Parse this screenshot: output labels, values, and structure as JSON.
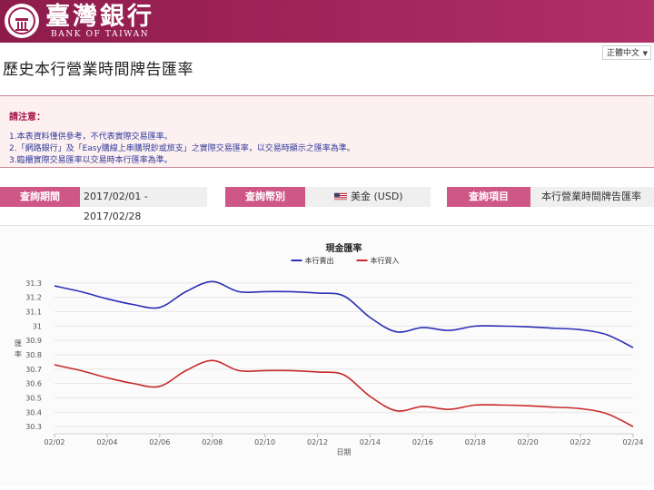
{
  "header": {
    "logo_cn": "臺灣銀行",
    "logo_en": "BANK OF TAIWAN",
    "language": "正體中文"
  },
  "page_title": "歷史本行營業時間牌告匯率",
  "notice": {
    "title": "請注意：",
    "lines": [
      "1.本表資料僅供參考，不代表實際交易匯率。",
      "2.「網路銀行」及「Easy購線上串購現鈔或旅支」之實際交易匯率，以交易時顯示之匯率為準。",
      "3.臨櫃實際交易匯率以交易時本行匯率為準。"
    ]
  },
  "query": {
    "period_label": "查詢期間",
    "period_value": "2017/02/01 - 2017/02/28",
    "currency_label": "查詢幣別",
    "currency_value": "美金 (USD)",
    "item_label": "查詢項目",
    "item_value": "本行營業時間牌告匯率"
  },
  "colors": {
    "brand": "#a0235a",
    "button": "#cf5788",
    "sell": "#2b2fb5",
    "buy": "#c62b2b"
  },
  "chart_data": {
    "type": "line",
    "title": "現金匯率",
    "xlabel": "日期",
    "ylabel": "匯率",
    "ylim": [
      30.25,
      31.35
    ],
    "yticks": [
      30.3,
      30.4,
      30.5,
      30.6,
      30.7,
      30.8,
      30.9,
      31,
      31.1,
      31.2,
      31.3
    ],
    "ytick_labels": [
      "30.3",
      "30.4",
      "30.5",
      "30.6",
      "30.7",
      "30.8",
      "30.9",
      "31",
      "31.1",
      "31.2",
      "31.3"
    ],
    "xlim": [
      2,
      24
    ],
    "xticks": [
      2,
      4,
      6,
      8,
      10,
      12,
      14,
      16,
      18,
      20,
      22,
      24
    ],
    "xtick_labels": [
      "02/02",
      "02/04",
      "02/06",
      "02/08",
      "02/10",
      "02/12",
      "02/14",
      "02/16",
      "02/18",
      "02/20",
      "02/22",
      "02/24"
    ],
    "legend_position": "top-center",
    "grid": true,
    "series": [
      {
        "name": "本行賣出",
        "color": "#2b2fb5",
        "x": [
          2,
          3,
          4,
          5,
          6,
          7,
          8,
          9,
          10,
          11,
          12,
          13,
          14,
          15,
          16,
          17,
          18,
          19,
          20,
          21,
          22,
          23,
          24
        ],
        "values": [
          31.28,
          31.24,
          31.19,
          31.15,
          31.13,
          31.24,
          31.31,
          31.24,
          31.24,
          31.24,
          31.23,
          31.21,
          31.06,
          30.96,
          30.99,
          30.97,
          31.0,
          31.0,
          30.995,
          30.985,
          30.975,
          30.94,
          30.85
        ]
      },
      {
        "name": "本行買入",
        "color": "#c62b2b",
        "x": [
          2,
          3,
          4,
          5,
          6,
          7,
          8,
          9,
          10,
          11,
          12,
          13,
          14,
          15,
          16,
          17,
          18,
          19,
          20,
          21,
          22,
          23,
          24
        ],
        "values": [
          30.73,
          30.69,
          30.64,
          30.6,
          30.58,
          30.69,
          30.76,
          30.69,
          30.69,
          30.69,
          30.68,
          30.66,
          30.51,
          30.41,
          30.44,
          30.42,
          30.45,
          30.45,
          30.445,
          30.435,
          30.425,
          30.39,
          30.3
        ]
      }
    ]
  }
}
